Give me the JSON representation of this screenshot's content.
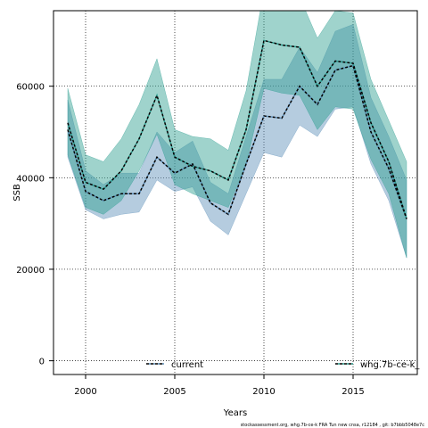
{
  "chart_data": {
    "type": "area",
    "xlabel": "Years",
    "ylabel": "SSB",
    "xlim": [
      1998.2,
      2018.6
    ],
    "ylim": [
      -3000,
      76500
    ],
    "xticks": [
      2000,
      2005,
      2010,
      2015
    ],
    "yticks": [
      0,
      20000,
      40000,
      60000
    ],
    "grid": true,
    "legend_position": "bottom",
    "x": [
      1999,
      2000,
      2001,
      2002,
      2003,
      2004,
      2005,
      2006,
      2007,
      2008,
      2009,
      2010,
      2011,
      2012,
      2013,
      2014,
      2015,
      2016,
      2017,
      2018
    ],
    "series": [
      {
        "name": "current",
        "color": "#5b8db8",
        "values": [
          50500,
          37000,
          35000,
          36500,
          36500,
          44500,
          41000,
          43000,
          34500,
          32000,
          43000,
          53500,
          53000,
          60000,
          56000,
          63500,
          64500,
          50000,
          42000,
          31000
        ],
        "lower": [
          44500,
          33000,
          31000,
          32000,
          32500,
          39500,
          37000,
          38000,
          30500,
          27500,
          36500,
          45500,
          44500,
          51500,
          49000,
          55000,
          55500,
          43000,
          35000,
          22500
        ],
        "upper": [
          57000,
          41500,
          38500,
          41000,
          41000,
          50000,
          45500,
          48000,
          39000,
          36500,
          49000,
          61500,
          61500,
          68500,
          63000,
          72000,
          73500,
          57500,
          49000,
          39500
        ]
      },
      {
        "name": "whg.7b-ce-k_",
        "color": "#2a9d8f",
        "values": [
          52000,
          39000,
          37500,
          41500,
          48500,
          58000,
          44500,
          42500,
          41500,
          39500,
          50500,
          70000,
          69000,
          68500,
          60000,
          65500,
          65000,
          52000,
          43500,
          31000
        ],
        "lower": [
          45000,
          33500,
          32000,
          35000,
          41500,
          49500,
          38500,
          36500,
          35000,
          33500,
          43000,
          59500,
          58500,
          58000,
          50500,
          55500,
          55000,
          44000,
          36500,
          22500
        ],
        "upper": [
          59500,
          45000,
          43500,
          48500,
          56000,
          66000,
          50500,
          49000,
          48500,
          46000,
          59000,
          81000,
          80000,
          79500,
          70500,
          76500,
          76000,
          61500,
          52500,
          43500
        ]
      }
    ]
  },
  "legend": {
    "items": [
      "current",
      "whg.7b-ce-k_"
    ]
  },
  "caption": "stockassessment.org, whg.7b-ce-k FRA Tun new cnsa, r12184 , git: b7bbb5048e7c"
}
